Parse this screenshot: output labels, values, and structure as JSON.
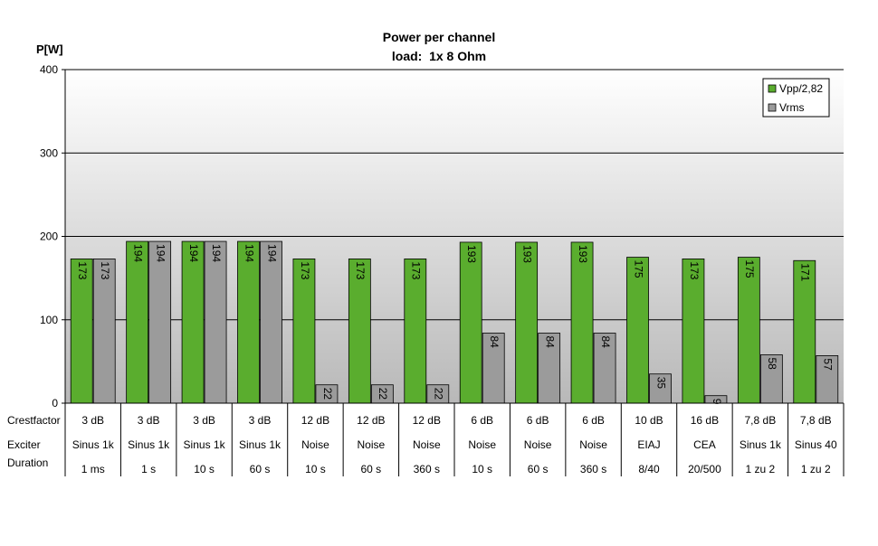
{
  "chart_data": {
    "type": "bar",
    "title": "Power per channel",
    "subtitle": "load:  1x 8 Ohm",
    "ylabel": "P[W]",
    "xlabel": "",
    "ylim": [
      0,
      400
    ],
    "yticks": [
      0,
      100,
      200,
      300,
      400
    ],
    "grid": true,
    "legend_position": "top-right",
    "row_labels": [
      "Crestfactor",
      "Exciter",
      "Duration"
    ],
    "categories": [
      {
        "crest": "3 dB",
        "exciter": "Sinus 1k",
        "duration": "1 ms"
      },
      {
        "crest": "3 dB",
        "exciter": "Sinus 1k",
        "duration": "1 s"
      },
      {
        "crest": "3 dB",
        "exciter": "Sinus 1k",
        "duration": "10 s"
      },
      {
        "crest": "3 dB",
        "exciter": "Sinus 1k",
        "duration": "60 s"
      },
      {
        "crest": "12 dB",
        "exciter": "Noise",
        "duration": "10 s"
      },
      {
        "crest": "12 dB",
        "exciter": "Noise",
        "duration": "60 s"
      },
      {
        "crest": "12 dB",
        "exciter": "Noise",
        "duration": "360 s"
      },
      {
        "crest": "6 dB",
        "exciter": "Noise",
        "duration": "10 s"
      },
      {
        "crest": "6 dB",
        "exciter": "Noise",
        "duration": "60 s"
      },
      {
        "crest": "6 dB",
        "exciter": "Noise",
        "duration": "360 s"
      },
      {
        "crest": "10 dB",
        "exciter": "EIAJ",
        "duration": "8/40"
      },
      {
        "crest": "16 dB",
        "exciter": "CEA",
        "duration": "20/500"
      },
      {
        "crest": "7,8 dB",
        "exciter": "Sinus 1k",
        "duration": "1 zu 2"
      },
      {
        "crest": "7,8 dB",
        "exciter": "Sinus 40",
        "duration": "1 zu 2"
      }
    ],
    "series": [
      {
        "name": "Vpp/2,82",
        "color": "#5aad2e",
        "values": [
          173,
          194,
          194,
          194,
          173,
          173,
          173,
          193,
          193,
          193,
          175,
          173,
          175,
          171
        ]
      },
      {
        "name": "Vrms",
        "color": "#9b9b9b",
        "values": [
          173,
          194,
          194,
          194,
          22,
          22,
          22,
          84,
          84,
          84,
          35,
          9,
          58,
          57
        ]
      }
    ]
  }
}
